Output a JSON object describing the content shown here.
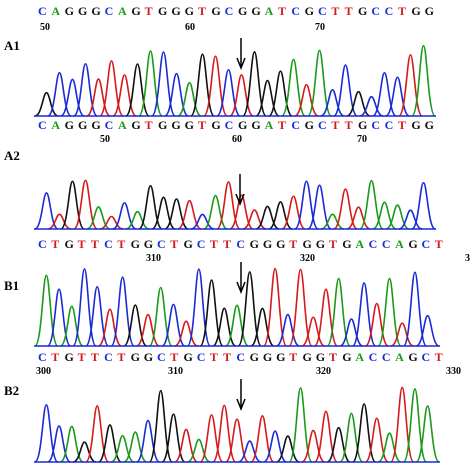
{
  "colors": {
    "A": "#1a9a1a",
    "C": "#1a2ad6",
    "G": "#111111",
    "T": "#d61a1a",
    "baseline": "#1a2ad6"
  },
  "panels": [
    {
      "label": "",
      "sequence": "CAGGGCAGTGGGTGCGGATCGCTTGCCTGG",
      "numbers": [
        "50",
        "60",
        "70"
      ]
    },
    {
      "label": "A1",
      "sequence": "CAGGGCAGTGGGTGCGGATCGCTTGCCTGG",
      "numbers": [
        "50",
        "60",
        "70"
      ]
    },
    {
      "label": "A2",
      "sequence": "CTGTTCTGGCTGCTTCGGGTGGTGACCAGCT",
      "numbers": [
        "310",
        "320"
      ]
    },
    {
      "label": "B1",
      "sequence": "CTGTTCTGGCTGCTTCGGGTGGTGACCAGCT",
      "numbers": [
        "310",
        "320",
        "330"
      ]
    },
    {
      "label": "B2",
      "sequence": "",
      "numbers": []
    }
  ],
  "edge_numbers": {
    "row3_right": "3",
    "row4_left": "300",
    "row4_right": "330"
  }
}
